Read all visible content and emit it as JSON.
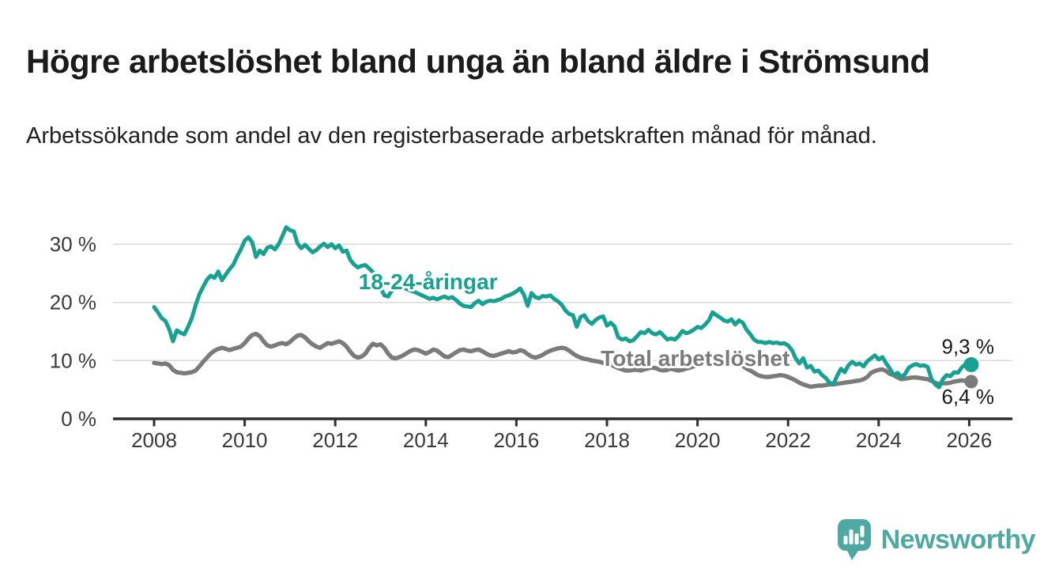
{
  "header": {
    "title": "Högre arbetslöshet bland unga än bland äldre i Strömsund",
    "subtitle": "Arbetssökande som andel av den registerbaserade arbetskraften månad för månad."
  },
  "chart_data": {
    "type": "line",
    "title": "Högre arbetslöshet bland unga än bland äldre i Strömsund",
    "subtitle": "Arbetssökande som andel av den registerbaserade arbetskraften månad för månad.",
    "x_start_year": 2008,
    "x_step_months": 1,
    "xlim": [
      2008,
      2026
    ],
    "ylim": [
      0,
      34
    ],
    "grid": "horizontal",
    "x_ticks": [
      2008,
      2010,
      2012,
      2014,
      2016,
      2018,
      2020,
      2022,
      2024,
      2026
    ],
    "y_ticks": [
      {
        "value": 0,
        "label": "0 %"
      },
      {
        "value": 10,
        "label": "10 %"
      },
      {
        "value": 20,
        "label": "20 %"
      },
      {
        "value": 30,
        "label": "30 %"
      }
    ],
    "series": [
      {
        "name": "Total arbetslöshet",
        "color": "#7b7b7b",
        "label": {
          "text": "Total arbetslöshet",
          "x": 2019.95,
          "y": 10.45
        },
        "end_value": 6.4,
        "end_label": "6,4 %",
        "end_label_side": "below",
        "values": [
          9.6,
          9.5,
          9.4,
          9.5,
          9.2,
          8.4,
          8.0,
          7.9,
          7.8,
          7.9,
          8.0,
          8.3,
          9.0,
          9.8,
          10.5,
          11.2,
          11.7,
          12.0,
          12.2,
          12.0,
          11.8,
          12.0,
          12.2,
          12.4,
          13.0,
          13.8,
          14.4,
          14.6,
          14.2,
          13.3,
          12.6,
          12.4,
          12.6,
          12.9,
          13.0,
          12.8,
          13.2,
          13.8,
          14.3,
          14.4,
          14.0,
          13.3,
          12.8,
          12.4,
          12.2,
          12.6,
          13.0,
          12.9,
          13.1,
          13.3,
          13.0,
          12.4,
          11.5,
          10.8,
          10.5,
          10.7,
          11.2,
          12.2,
          12.9,
          12.6,
          12.8,
          12.2,
          11.2,
          10.5,
          10.4,
          10.6,
          10.9,
          11.3,
          11.7,
          11.9,
          11.8,
          11.5,
          11.2,
          11.5,
          11.9,
          11.7,
          11.2,
          10.7,
          10.6,
          11.0,
          11.4,
          11.8,
          11.9,
          11.7,
          11.6,
          11.8,
          11.9,
          11.6,
          11.2,
          10.9,
          10.8,
          11.0,
          11.2,
          11.4,
          11.6,
          11.4,
          11.5,
          11.8,
          11.6,
          11.1,
          10.7,
          10.5,
          10.7,
          11.0,
          11.4,
          11.7,
          11.9,
          12.1,
          12.2,
          12.1,
          11.7,
          11.2,
          10.8,
          10.5,
          10.3,
          10.2,
          10.0,
          9.9,
          9.8,
          9.6,
          9.4,
          9.3,
          9.0,
          8.7,
          8.5,
          8.3,
          8.3,
          8.4,
          8.4,
          8.3,
          8.5,
          8.7,
          8.8,
          8.7,
          8.4,
          8.3,
          8.4,
          8.6,
          8.4,
          8.3,
          8.4,
          8.6,
          8.8,
          9.0,
          9.2,
          9.5,
          9.9,
          10.3,
          10.5,
          10.4,
          10.2,
          10.1,
          10.0,
          9.9,
          9.7,
          9.4,
          9.1,
          8.6,
          8.3,
          7.9,
          7.5,
          7.3,
          7.2,
          7.2,
          7.3,
          7.4,
          7.5,
          7.4,
          7.2,
          6.9,
          6.6,
          6.2,
          5.9,
          5.7,
          5.5,
          5.6,
          5.7,
          5.7,
          5.8,
          5.9,
          5.9,
          6.0,
          6.1,
          6.2,
          6.3,
          6.4,
          6.5,
          6.6,
          6.8,
          7.2,
          7.9,
          8.2,
          8.4,
          8.5,
          8.2,
          7.7,
          7.5,
          7.1,
          6.8,
          6.9,
          7.0,
          7.1,
          7.1,
          7.0,
          6.9,
          6.8,
          6.5,
          6.2,
          6.0,
          6.1,
          6.1,
          6.2,
          6.4,
          6.5,
          6.6,
          6.5,
          6.4
        ]
      },
      {
        "name": "18-24-åringar",
        "color": "#16a190",
        "label": {
          "text": "18-24-åringar",
          "x": 2014.05,
          "y": 23.6
        },
        "end_value": 9.3,
        "end_label": "9,3 %",
        "end_label_side": "above",
        "values": [
          19.2,
          18.3,
          17.3,
          16.8,
          15.4,
          13.3,
          15.2,
          14.8,
          14.5,
          15.8,
          17.3,
          19.5,
          21.4,
          22.7,
          23.9,
          24.6,
          24.2,
          25.3,
          23.8,
          24.8,
          25.7,
          26.5,
          27.9,
          29.1,
          30.6,
          31.2,
          30.3,
          27.8,
          28.9,
          28.3,
          29.4,
          29.6,
          29.1,
          30.0,
          31.4,
          32.9,
          32.4,
          32.2,
          30.1,
          29.3,
          29.9,
          29.2,
          28.6,
          29.0,
          29.6,
          30.1,
          29.5,
          30.0,
          29.3,
          29.8,
          28.7,
          28.9,
          27.3,
          26.5,
          26.0,
          26.3,
          26.4,
          25.8,
          25.2,
          24.1,
          22.5,
          21.2,
          21.0,
          22.0,
          22.4,
          22.2,
          22.5,
          22.3,
          22.0,
          21.8,
          21.5,
          21.2,
          20.9,
          20.6,
          20.8,
          20.5,
          20.8,
          21.0,
          20.7,
          20.9,
          20.4,
          19.8,
          19.4,
          19.3,
          19.2,
          19.9,
          20.3,
          19.7,
          20.1,
          20.3,
          20.2,
          20.4,
          20.6,
          21.0,
          21.2,
          21.5,
          21.9,
          22.4,
          21.3,
          19.4,
          21.6,
          20.9,
          20.7,
          21.1,
          21.0,
          21.2,
          20.6,
          20.2,
          19.6,
          18.6,
          18.0,
          17.8,
          15.8,
          17.5,
          17.8,
          16.8,
          16.3,
          17.0,
          17.4,
          17.6,
          16.0,
          16.5,
          15.9,
          14.0,
          13.6,
          13.8,
          13.3,
          13.5,
          14.2,
          14.9,
          14.7,
          15.3,
          14.7,
          14.5,
          14.9,
          14.3,
          13.6,
          13.8,
          13.6,
          14.2,
          15.1,
          14.7,
          14.9,
          15.3,
          15.8,
          15.6,
          16.2,
          16.9,
          18.3,
          17.8,
          17.4,
          16.9,
          16.7,
          17.1,
          16.2,
          16.9,
          16.5,
          15.3,
          14.5,
          13.6,
          13.2,
          13.2,
          13.0,
          13.2,
          13.0,
          13.1,
          12.9,
          13.0,
          12.6,
          11.8,
          10.4,
          9.5,
          10.4,
          8.8,
          9.1,
          8.1,
          8.3,
          7.5,
          7.0,
          6.2,
          5.9,
          7.4,
          8.6,
          8.0,
          9.2,
          9.8,
          9.3,
          9.5,
          9.0,
          9.9,
          10.4,
          10.9,
          10.2,
          10.6,
          9.5,
          8.6,
          7.5,
          7.9,
          7.2,
          7.7,
          8.8,
          9.2,
          9.4,
          9.1,
          9.2,
          8.9,
          6.8,
          5.9,
          5.4,
          6.8,
          7.5,
          7.3,
          8.0,
          7.9,
          8.8,
          9.4,
          9.3
        ]
      }
    ]
  },
  "footer": {
    "brand": "Newsworthy",
    "brand_color": "#4ea9a3"
  },
  "colors": {
    "accent_teal": "#16a190",
    "line_gray": "#7b7b7b",
    "title_text": "#1b1b1b",
    "axis_text": "#3a3a3a",
    "axis_line": "#2e2e2e",
    "gridline": "#d9d9d9",
    "value_label_text": "#1a1a1a",
    "logo_teal": "#4ea9a3"
  }
}
